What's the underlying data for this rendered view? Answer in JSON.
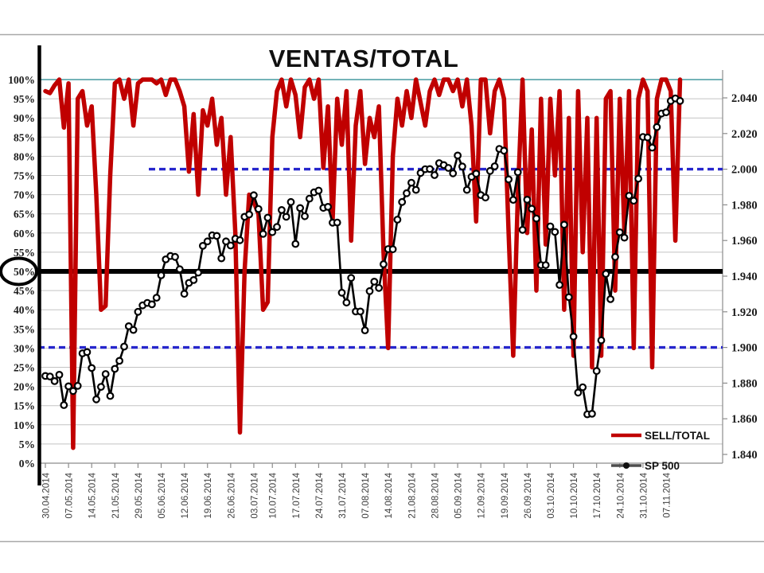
{
  "title": "VENTAS/TOTAL",
  "legend": {
    "items": [
      {
        "label": "SELL/TOTAL",
        "color": "#C00000"
      },
      {
        "label": "SP 500",
        "color": "#4d4d4d"
      }
    ]
  },
  "annotations": {
    "circled_axis_label": "50%",
    "bold_horizontal_line_pct": 50,
    "upper_dashed_reference_price": 2000,
    "lower_dashed_reference_price": 1900,
    "top_limit_line_pct": 100
  },
  "colors": {
    "sell_total_line": "#C00000",
    "sp500_line": "#000000",
    "dashed_reference": "#2626CC",
    "limit_line_teal": "#5FA8AE",
    "gridline": "#c3c3c3",
    "axis_gray": "#8c8c8c",
    "date_label": "#3f3f3f",
    "chart_border": "#a8a8a8"
  },
  "chart_data": {
    "type": "line",
    "title": "VENTAS/TOTAL",
    "grid": "on",
    "legend_position": "inside-bottom-right",
    "left_axis": {
      "min": 0,
      "max": 100,
      "step": 5,
      "format": "percent",
      "tick_labels": [
        "100%",
        "95%",
        "90%",
        "85%",
        "80%",
        "75%",
        "70%",
        "65%",
        "60%",
        "55%",
        "50%",
        "45%",
        "40%",
        "35%",
        "30%",
        "25%",
        "20%",
        "15%",
        "10%",
        "5%",
        "0%"
      ]
    },
    "right_axis": {
      "min": 1840,
      "max": 2040,
      "step": 20,
      "format": "dot-thousands",
      "tick_labels": [
        "2.040",
        "2.020",
        "2.000",
        "1.980",
        "1.960",
        "1.940",
        "1.920",
        "1.900",
        "1.880",
        "1.860",
        "1.840"
      ]
    },
    "x": {
      "n_points": 138,
      "tick_labels": [
        "30.04.2014",
        "07.05.2014",
        "14.05.2014",
        "21.05.2014",
        "29.05.2014",
        "05.06.2014",
        "12.06.2014",
        "19.06.2014",
        "26.06.2014",
        "03.07.2014",
        "10.07.2014",
        "17.07.2014",
        "24.07.2014",
        "31.07.2014",
        "07.08.2014",
        "14.08.2014",
        "21.08.2014",
        "28.08.2014",
        "05.09.2014",
        "12.09.2014",
        "19.09.2014",
        "26.09.2014",
        "03.10.2014",
        "10.10.2014",
        "17.10.2014",
        "24.10.2014",
        "31.10.2014",
        "07.11.2014"
      ],
      "tick_indices": [
        0,
        5,
        10,
        15,
        20,
        25,
        30,
        35,
        40,
        45,
        49,
        54,
        59,
        64,
        69,
        74,
        79,
        84,
        89,
        94,
        99,
        104,
        109,
        114,
        119,
        124,
        129,
        134
      ]
    },
    "series": [
      {
        "name": "SELL/TOTAL",
        "axis": "left",
        "unit": "%",
        "color": "#C00000",
        "values": [
          97,
          96.5,
          98.5,
          100,
          87.5,
          99,
          4,
          95,
          97,
          88,
          93,
          70,
          40,
          41,
          75,
          99,
          100,
          95,
          100,
          88,
          99,
          100,
          100,
          100,
          99,
          100,
          96,
          100,
          100,
          97,
          93,
          76,
          91,
          70,
          92,
          88,
          95,
          83,
          90,
          70,
          85,
          60,
          8,
          50,
          70,
          68,
          65,
          40,
          42,
          85,
          97,
          100,
          93,
          100,
          96,
          85,
          98,
          100,
          95,
          100,
          77,
          93,
          63,
          95,
          83,
          97,
          58,
          88,
          97,
          78,
          90,
          85,
          93,
          55,
          30,
          80,
          95,
          88,
          97,
          90,
          100,
          94,
          88,
          97,
          100,
          96,
          100,
          100,
          97,
          100,
          93,
          100,
          88,
          63,
          100,
          100,
          86,
          97,
          100,
          95,
          60,
          28,
          70,
          100,
          60,
          87,
          45,
          95,
          57,
          95,
          75,
          97,
          40,
          90,
          28,
          97,
          55,
          90,
          25,
          90,
          28,
          95,
          97,
          45,
          95,
          60,
          97,
          30,
          95,
          100,
          97,
          25,
          95,
          100,
          100,
          97,
          58,
          100
        ]
      },
      {
        "name": "SP 500",
        "axis": "right",
        "color": "#000000",
        "values": [
          1884,
          1883.7,
          1881.1,
          1884.7,
          1867.7,
          1878.2,
          1875.6,
          1878.5,
          1896.7,
          1897.4,
          1888.5,
          1870.9,
          1877.9,
          1885.1,
          1872.8,
          1888,
          1892.5,
          1900.5,
          1911.9,
          1909.8,
          1920,
          1923.6,
          1925,
          1924.2,
          1927.9,
          1940.5,
          1949.4,
          1951.3,
          1950.8,
          1943.9,
          1930.1,
          1936.2,
          1937.8,
          1942,
          1957,
          1959.5,
          1962.9,
          1962.6,
          1950,
          1959.5,
          1957.2,
          1961,
          1960.2,
          1973.3,
          1974.6,
          1985.4,
          1977.7,
          1963.7,
          1972.8,
          1964.7,
          1967.6,
          1977.1,
          1973.3,
          1981.6,
          1958.1,
          1978.2,
          1973.6,
          1983.5,
          1987,
          1988,
          1978.3,
          1978.9,
          1970,
          1970.1,
          1930.7,
          1925.2,
          1939,
          1920.2,
          1920.2,
          1909.6,
          1931.6,
          1936.9,
          1933.4,
          1946.7,
          1955.2,
          1955.1,
          1971.7,
          1981.6,
          1986.5,
          1992.4,
          1988.4,
          1997.9,
          2000,
          2000.1,
          1996.7,
          2003.4,
          2002.3,
          2000.7,
          1997.7,
          2007.7,
          2001.5,
          1988.4,
          1995.7,
          1997.5,
          1985.5,
          1984.1,
          1999,
          2001.6,
          2011.4,
          2010.4,
          1994.3,
          1982.8,
          1998.3,
          1966,
          1982.9,
          1977.8,
          1972.3,
          1946.2,
          1946.2,
          1967.9,
          1964.8,
          1935.1,
          1968.9,
          1928.2,
          1906.1,
          1874.7,
          1877.7,
          1862.5,
          1862.8,
          1886.8,
          1904,
          1941.3,
          1927.1,
          1950.8,
          1964.6,
          1961.6,
          1985.1,
          1982.3,
          1994.7,
          2018.1,
          2017.8,
          2012.1,
          2023.6,
          2031.2,
          2031.9,
          2038.3,
          2039.7,
          2038.3
        ]
      }
    ]
  }
}
